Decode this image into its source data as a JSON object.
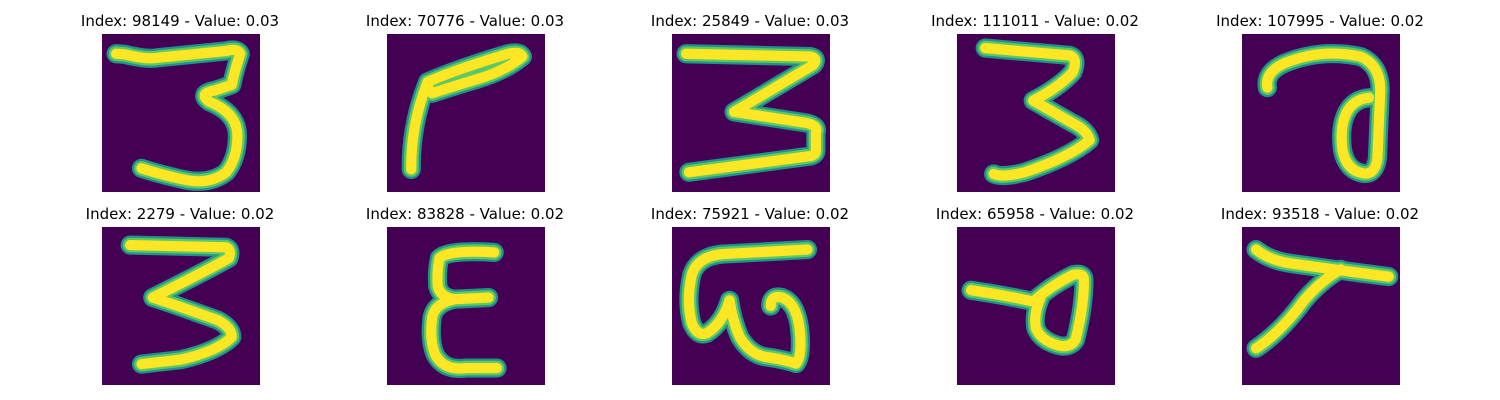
{
  "colors": {
    "background": "#440154",
    "stroke": "#fde725",
    "edge": "#21918c",
    "edge_mid": "#5ec962"
  },
  "panels": [
    {
      "title": "Index: 98149 - Value: 0.03",
      "glyph": "digit-3-open"
    },
    {
      "title": "Index: 70776 - Value: 0.03",
      "glyph": "seven-like-stroke"
    },
    {
      "title": "Index: 25849 - Value: 0.03",
      "glyph": "digit-3-zigzag"
    },
    {
      "title": "Index: 111011 - Value: 0.02",
      "glyph": "digit-3-zigzag-narrow"
    },
    {
      "title": "Index: 107995 - Value: 0.02",
      "glyph": "a-loop"
    },
    {
      "title": "Index: 2279 - Value: 0.02",
      "glyph": "digit-3-bold"
    },
    {
      "title": "Index: 83828 - Value: 0.02",
      "glyph": "epsilon"
    },
    {
      "title": "Index: 75921 - Value: 0.02",
      "glyph": "omega-with-bar"
    },
    {
      "title": "Index: 65958 - Value: 0.02",
      "glyph": "triangle-stroke"
    },
    {
      "title": "Index: 93518 - Value: 0.02",
      "glyph": "slanted-t"
    }
  ]
}
